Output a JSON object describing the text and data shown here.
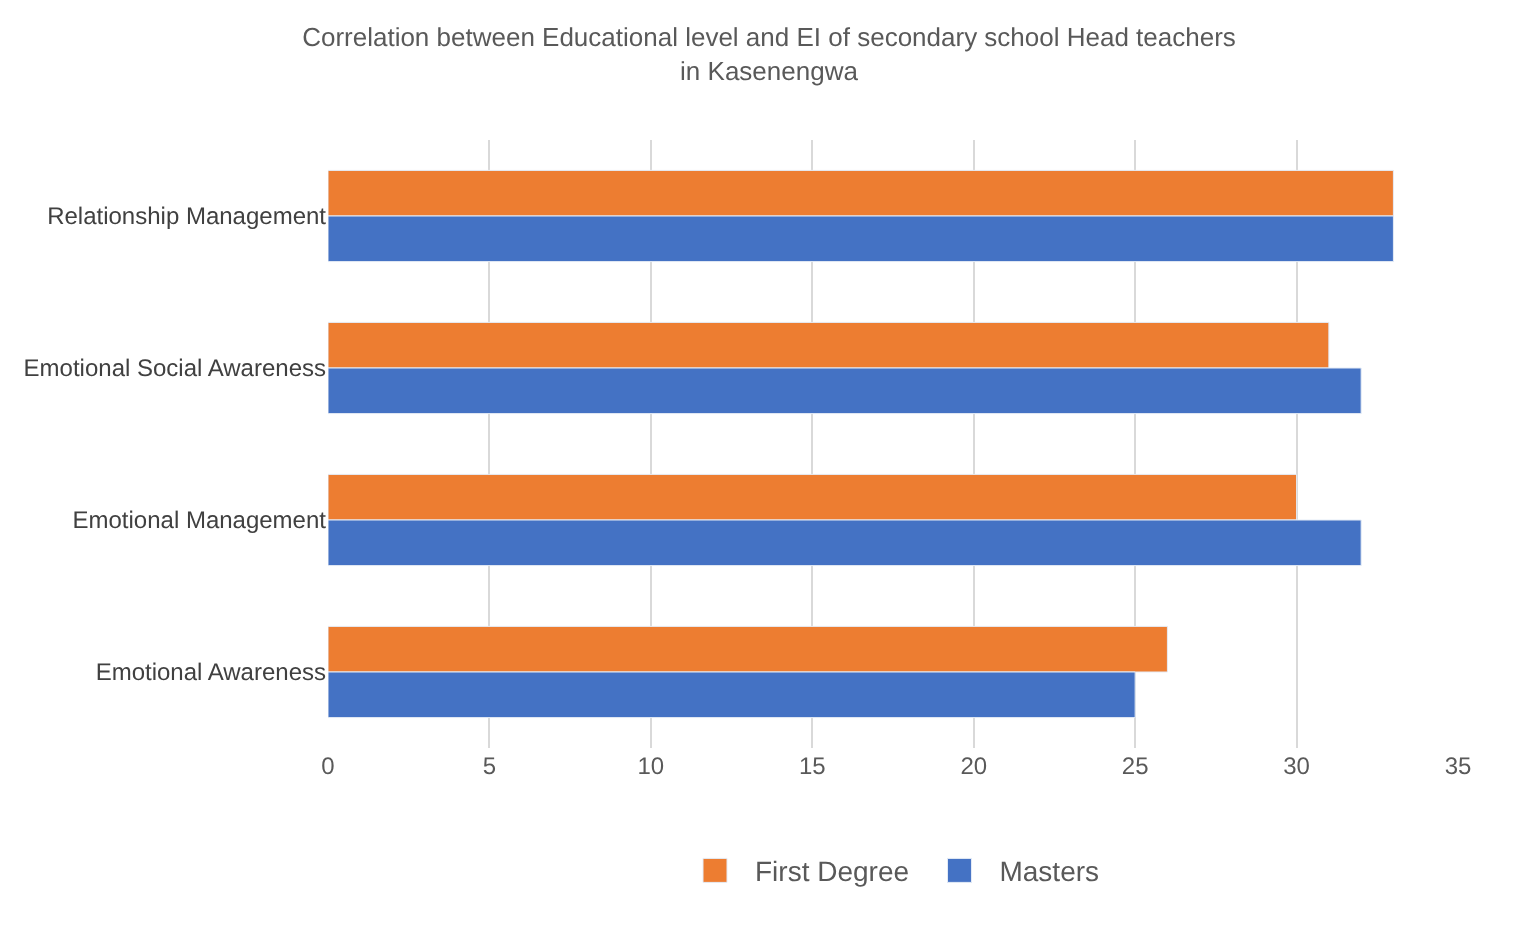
{
  "chart_data": {
    "type": "bar",
    "orientation": "horizontal",
    "title": "Correlation between Educational level and EI of secondary school Head teachers\nin Kasenengwa",
    "categories": [
      "Relationship Management",
      "Emotional Social Awareness",
      "Emotional Management",
      "Emotional Awareness"
    ],
    "series": [
      {
        "name": "First Degree",
        "color": "#ed7d31",
        "values": [
          33,
          31,
          30,
          26
        ]
      },
      {
        "name": "Masters",
        "color": "#4472c4",
        "values": [
          33,
          32,
          32,
          25
        ]
      }
    ],
    "xlim": [
      0,
      35
    ],
    "xticks": [
      0,
      5,
      10,
      15,
      20,
      25,
      30,
      35
    ],
    "grid": "x",
    "legend": "bottom"
  }
}
